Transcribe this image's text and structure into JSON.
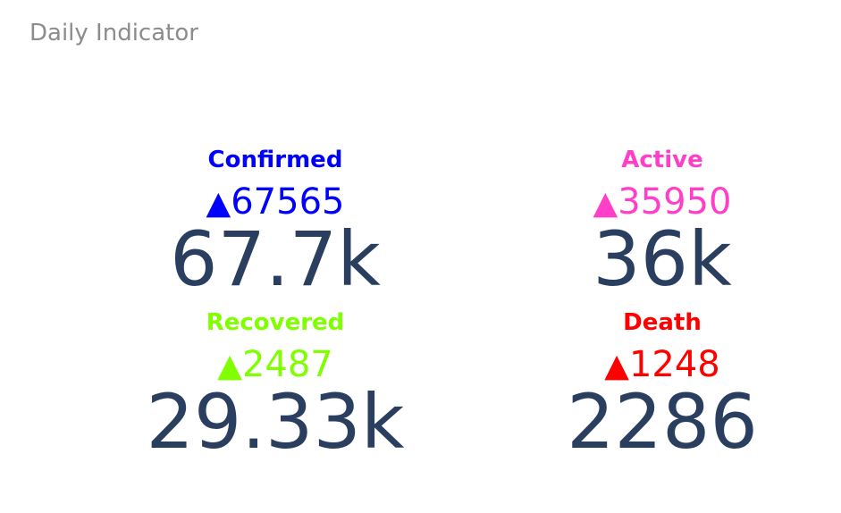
{
  "title": "Daily Indicator",
  "chart_data": {
    "type": "indicator",
    "title": "Daily Indicator",
    "indicators": [
      {
        "label": "Confirmed",
        "color": "#0000ff",
        "delta_arrow": "▲",
        "delta": "67565",
        "value_display": "67.7k",
        "value": 67700
      },
      {
        "label": "Active",
        "color": "#ff3fc8",
        "delta_arrow": "▲",
        "delta": "35950",
        "value_display": "36k",
        "value": 36000
      },
      {
        "label": "Recovered",
        "color": "#80ff00",
        "delta_arrow": "▲",
        "delta": "2487",
        "value_display": "29.33k",
        "value": 29330
      },
      {
        "label": "Death",
        "color": "#ff0000",
        "delta_arrow": "▲",
        "delta": "1248",
        "value_display": "2286",
        "value": 2286
      }
    ]
  }
}
